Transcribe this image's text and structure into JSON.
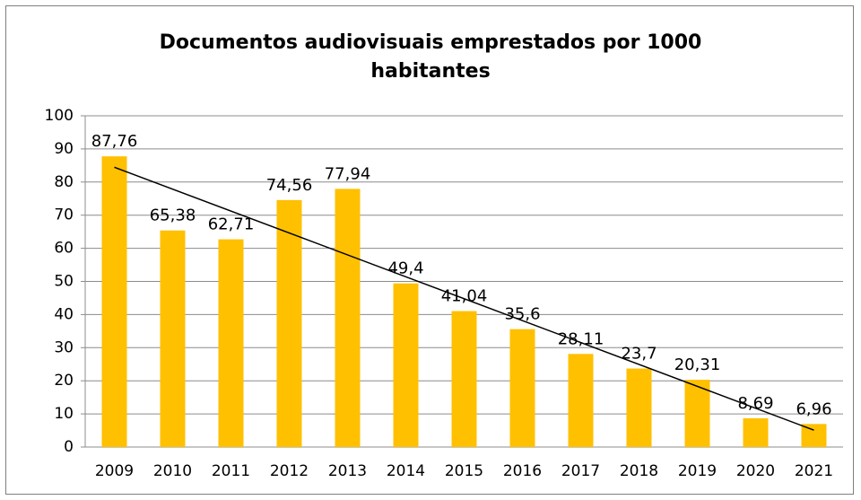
{
  "chart_data": {
    "type": "bar",
    "title": "Documentos audiovisuais emprestados por 1000 habitantes",
    "categories": [
      "2009",
      "2010",
      "2011",
      "2012",
      "2013",
      "2014",
      "2015",
      "2016",
      "2017",
      "2018",
      "2019",
      "2020",
      "2021"
    ],
    "values": [
      87.76,
      65.38,
      62.71,
      74.56,
      77.94,
      49.4,
      41.04,
      35.6,
      28.11,
      23.7,
      20.31,
      8.69,
      6.96
    ],
    "value_labels": [
      "87,76",
      "65,38",
      "62,71",
      "74,56",
      "77,94",
      "49,4",
      "41,04",
      "35,6",
      "28,11",
      "23,7",
      "20,31",
      "8,69",
      "6,96"
    ],
    "color": "#ffc000",
    "ylim": [
      0,
      100
    ],
    "yticks": [
      0,
      10,
      20,
      30,
      40,
      50,
      60,
      70,
      80,
      90,
      100
    ],
    "grid": true,
    "trendline": "linear"
  }
}
